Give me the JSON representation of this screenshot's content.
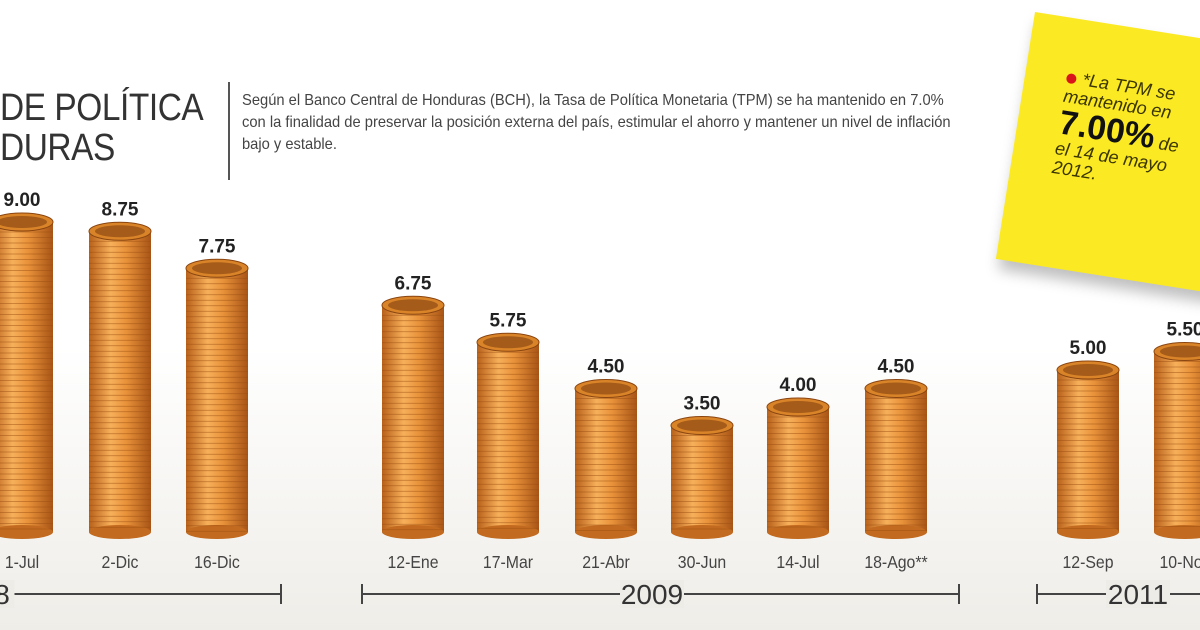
{
  "header": {
    "title_line1": "DE POLÍTICA",
    "title_line2": "DURAS",
    "description": "Según el Banco Central de Honduras (BCH), la Tasa de Política Monetaria (TPM) se ha mantenido en 7.0% con la finalidad de preservar la posición externa del país, estimular el ahorro y mantener un nivel de inflación bajo y estable."
  },
  "note": {
    "line1": "*La TPM se",
    "line2": "mantenido en",
    "big": "7.00%",
    "big_suffix": "de",
    "line4": "el 14 de mayo",
    "line5": "2012.",
    "bg_color": "#fbe923",
    "dot_color": "#d9141b"
  },
  "chart_data": {
    "type": "bar",
    "bar_style": "coin-stacks",
    "bar_color": "#e08a2c",
    "categories": [
      "1-Jul",
      "2-Dic",
      "16-Dic",
      "12-Ene",
      "17-Mar",
      "21-Abr",
      "30-Jun",
      "14-Jul",
      "18-Ago**",
      "12-Sep",
      "10-Nov"
    ],
    "values": [
      9.0,
      8.75,
      7.75,
      6.75,
      5.75,
      4.5,
      3.5,
      4.0,
      4.5,
      5.0,
      5.5
    ],
    "data_labels": [
      "9.00",
      "8.75",
      "7.75",
      "6.75",
      "5.75",
      "4.50",
      "3.50",
      "4.00",
      "4.50",
      "5.00",
      "5.50"
    ],
    "groups": [
      {
        "label": "8",
        "categories": [
          "1-Jul",
          "2-Dic",
          "16-Dic"
        ]
      },
      {
        "label": "2009",
        "categories": [
          "12-Ene",
          "17-Mar",
          "21-Abr",
          "30-Jun",
          "14-Jul",
          "18-Ago**"
        ]
      },
      {
        "label": "2011",
        "categories": [
          "12-Sep",
          "10-Nov"
        ]
      }
    ],
    "grid": false
  }
}
